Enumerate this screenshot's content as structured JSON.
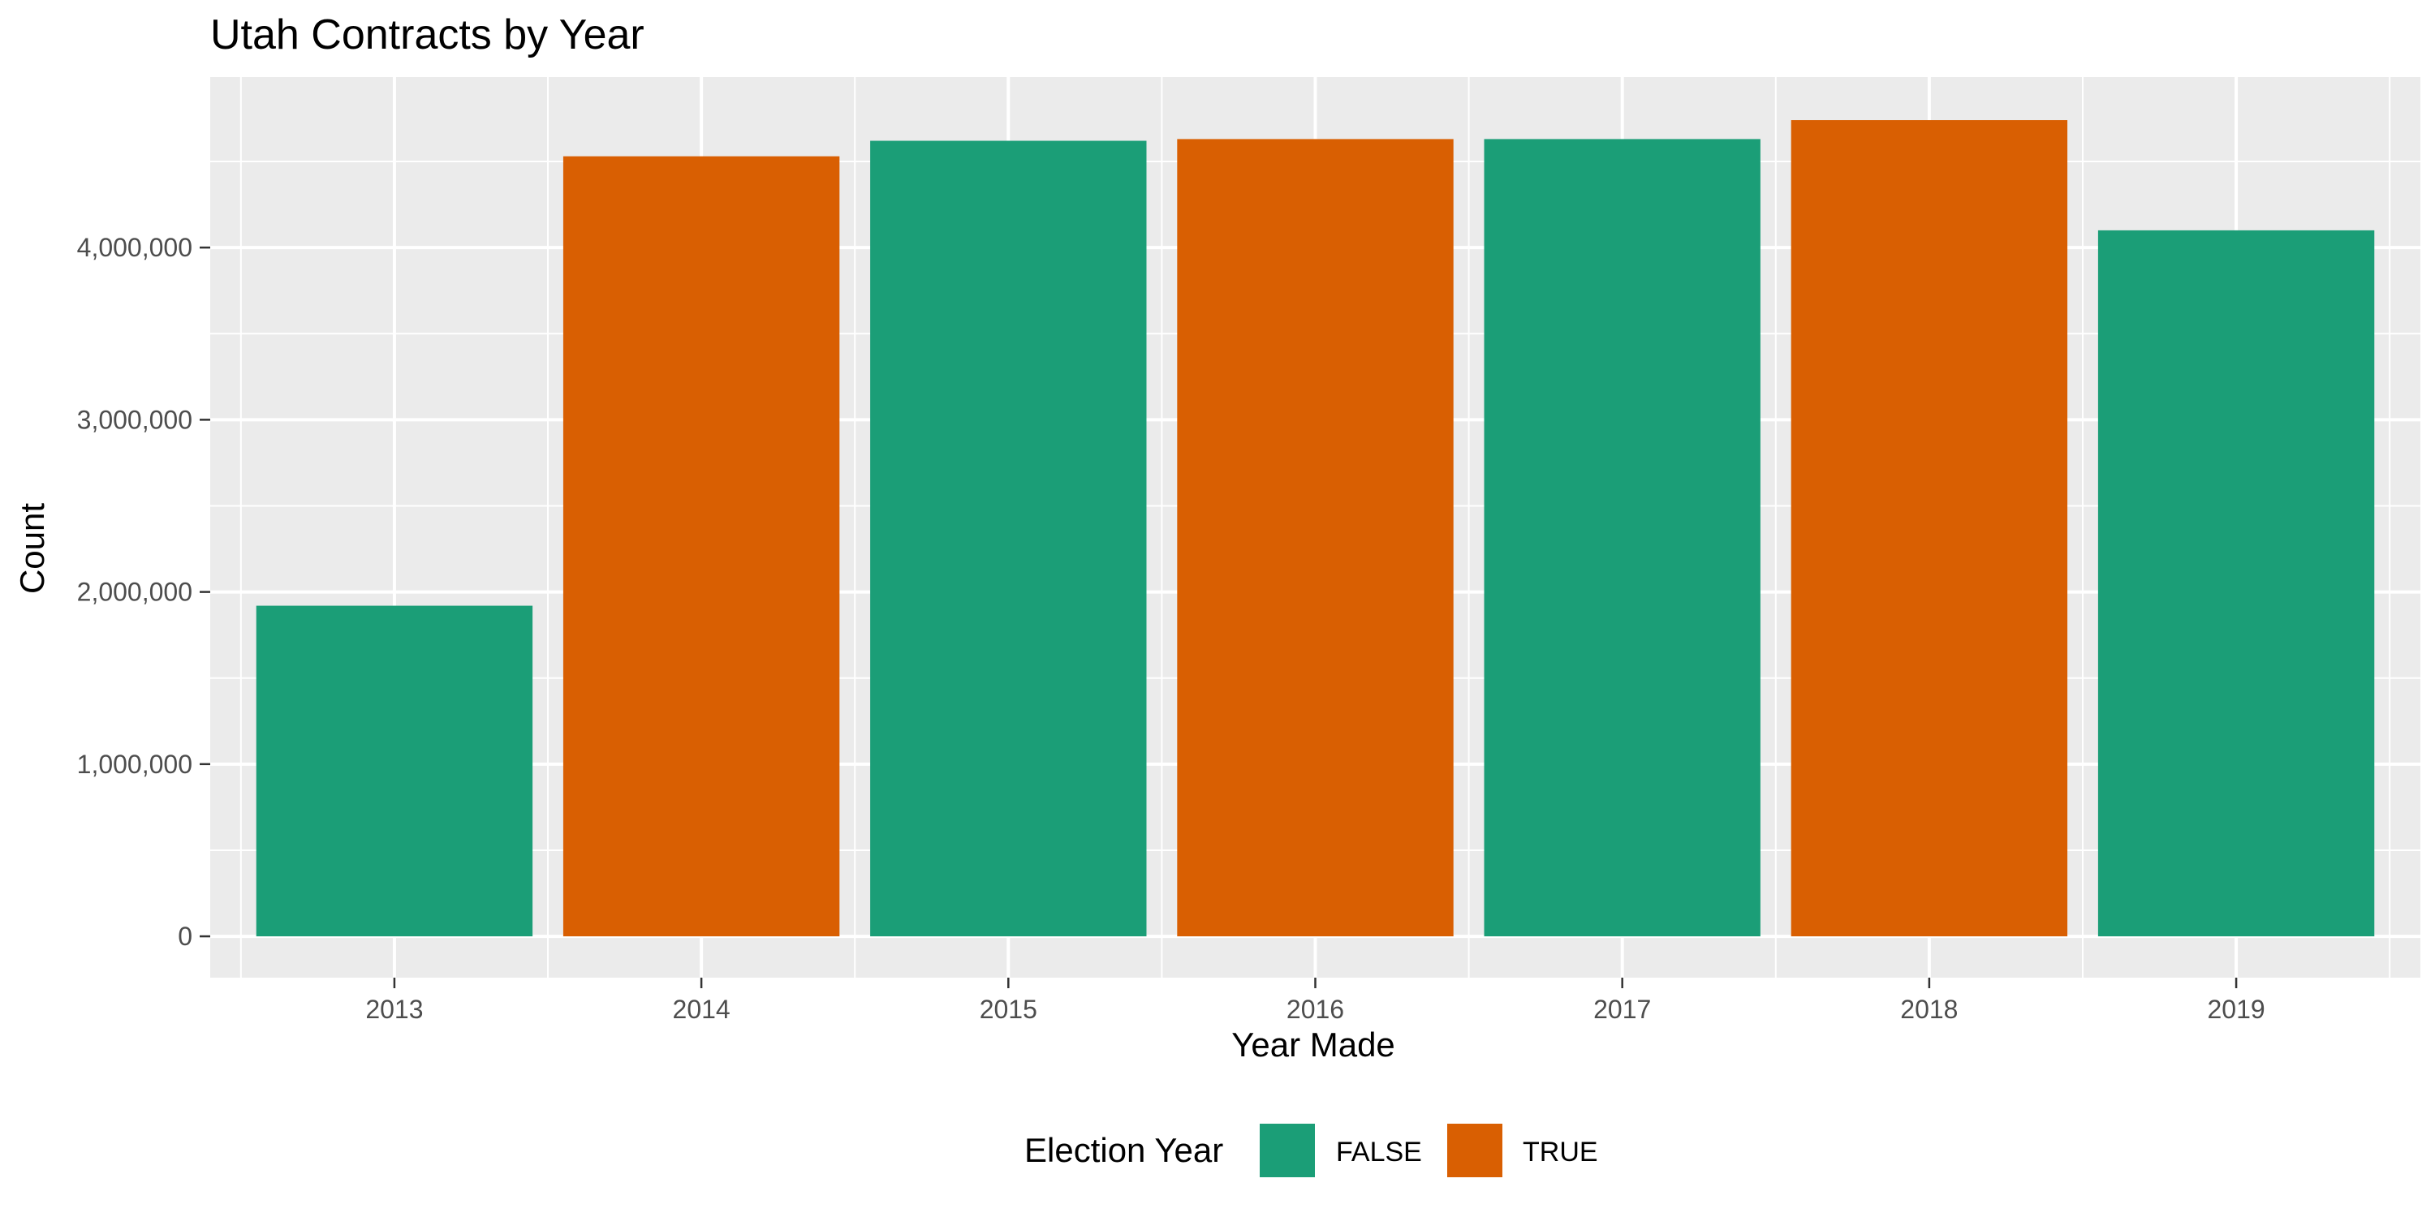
{
  "chart_data": {
    "type": "bar",
    "title": "Utah Contracts by Year",
    "xlabel": "Year Made",
    "ylabel": "Count",
    "categories": [
      "2013",
      "2014",
      "2015",
      "2016",
      "2017",
      "2018",
      "2019"
    ],
    "values": [
      1920000,
      4530000,
      4620000,
      4630000,
      4630000,
      4740000,
      4100000
    ],
    "groups": [
      "FALSE",
      "TRUE",
      "FALSE",
      "TRUE",
      "FALSE",
      "TRUE",
      "FALSE"
    ],
    "ylim": [
      -240000,
      4990000
    ],
    "y_ticks": [
      0,
      1000000,
      2000000,
      3000000,
      4000000
    ],
    "y_tick_labels": [
      "0",
      "1,000,000",
      "2,000,000",
      "3,000,000",
      "4,000,000"
    ],
    "grid": true,
    "legend": {
      "title": "Election Year",
      "position": "bottom",
      "entries": [
        {
          "label": "FALSE",
          "color": "#1b9e77"
        },
        {
          "label": "TRUE",
          "color": "#d95f02"
        }
      ]
    },
    "colors": {
      "panel_background": "#ebebeb",
      "grid": "#ffffff",
      "FALSE": "#1b9e77",
      "TRUE": "#d95f02"
    }
  }
}
